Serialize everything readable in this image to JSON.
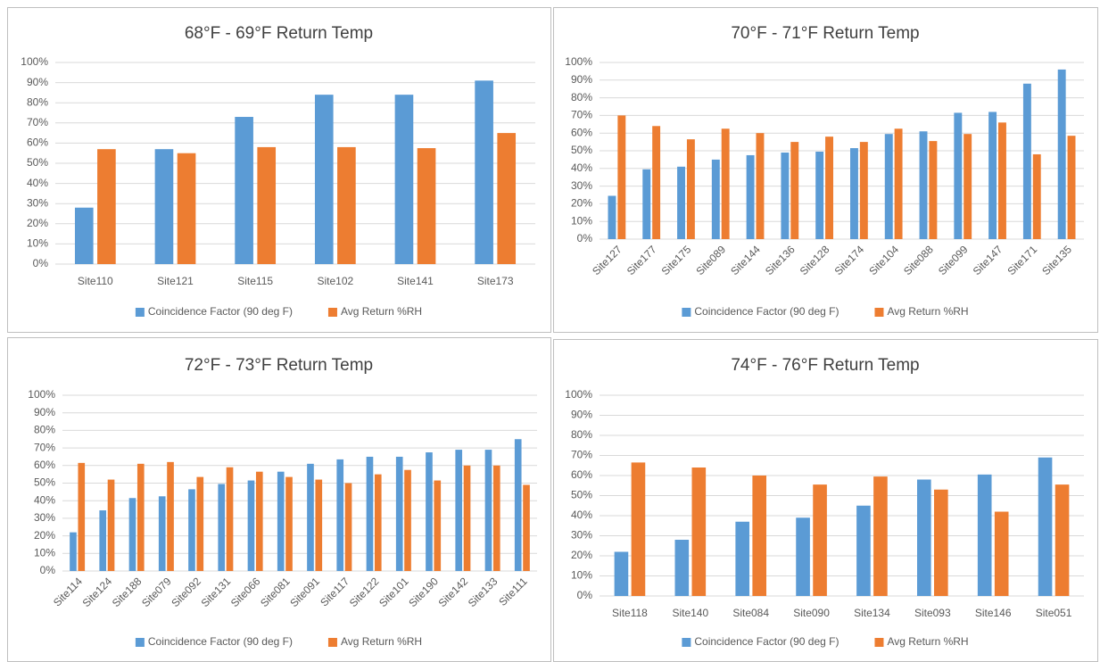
{
  "chart_data": [
    {
      "type": "bar",
      "title": "68°F - 69°F Return Temp",
      "categories": [
        "Site110",
        "Site121",
        "Site115",
        "Site102",
        "Site141",
        "Site173"
      ],
      "series": [
        {
          "name": "Coincidence Factor (90 deg F)",
          "color": "#5b9bd5",
          "values": [
            28,
            57,
            73,
            84,
            84,
            91
          ]
        },
        {
          "name": "Avg Return %RH",
          "color": "#ed7d31",
          "values": [
            57,
            55,
            58,
            58,
            57.5,
            65
          ]
        }
      ],
      "ylim": [
        0,
        100
      ],
      "yticks": [
        {
          "value": 0,
          "label": "0%"
        },
        {
          "value": 10,
          "label": "10%"
        },
        {
          "value": 20,
          "label": "20%"
        },
        {
          "value": 30,
          "label": "30%"
        },
        {
          "value": 40,
          "label": "40%"
        },
        {
          "value": 50,
          "label": "50%"
        },
        {
          "value": 60,
          "label": "60%"
        },
        {
          "value": 70,
          "label": "70%"
        },
        {
          "value": 80,
          "label": "80%"
        },
        {
          "value": 90,
          "label": "90%"
        },
        {
          "value": 100,
          "label": "100%"
        }
      ],
      "grid": true,
      "legend": "bottom"
    },
    {
      "type": "bar",
      "title": "70°F - 71°F Return Temp",
      "categories": [
        "Site127",
        "Site177",
        "Site175",
        "Site089",
        "Site144",
        "Site136",
        "Site128",
        "Site174",
        "Site104",
        "Site088",
        "Site099",
        "Site147",
        "Site171",
        "Site135"
      ],
      "series": [
        {
          "name": "Coincidence Factor (90 deg F)",
          "color": "#5b9bd5",
          "values": [
            24.5,
            39.5,
            41,
            45,
            47.5,
            49,
            49.5,
            51.5,
            59.5,
            61,
            71.5,
            72,
            88,
            96
          ]
        },
        {
          "name": "Avg Return %RH",
          "color": "#ed7d31",
          "values": [
            70,
            64,
            56.5,
            62.5,
            60,
            55,
            58,
            55,
            62.5,
            55.5,
            59.5,
            66,
            48,
            58.5
          ]
        }
      ],
      "ylim": [
        0,
        100
      ],
      "yticks": [
        {
          "value": 0,
          "label": "0%"
        },
        {
          "value": 10,
          "label": "10%"
        },
        {
          "value": 20,
          "label": "20%"
        },
        {
          "value": 30,
          "label": "30%"
        },
        {
          "value": 40,
          "label": "40%"
        },
        {
          "value": 50,
          "label": "50%"
        },
        {
          "value": 60,
          "label": "60%"
        },
        {
          "value": 70,
          "label": "70%"
        },
        {
          "value": 80,
          "label": "80%"
        },
        {
          "value": 90,
          "label": "90%"
        },
        {
          "value": 100,
          "label": "100%"
        }
      ],
      "grid": true,
      "legend": "bottom"
    },
    {
      "type": "bar",
      "title": "72°F - 73°F Return Temp",
      "categories": [
        "Site114",
        "Site124",
        "Site188",
        "Site079",
        "Site092",
        "Site131",
        "Site066",
        "Site081",
        "Site091",
        "Site117",
        "Site122",
        "Site101",
        "Site190",
        "Site142",
        "Site133",
        "Site111"
      ],
      "series": [
        {
          "name": "Coincidence Factor (90 deg F)",
          "color": "#5b9bd5",
          "values": [
            22,
            34.5,
            41.5,
            42.5,
            46.5,
            49.5,
            51.5,
            56.5,
            61,
            63.5,
            65,
            65,
            67.5,
            69,
            69,
            75
          ]
        },
        {
          "name": "Avg Return %RH",
          "color": "#ed7d31",
          "values": [
            61.5,
            52,
            61,
            62,
            53.5,
            59,
            56.5,
            53.5,
            52,
            50,
            55,
            57.5,
            51.5,
            60,
            60,
            49
          ]
        }
      ],
      "ylim": [
        0,
        100
      ],
      "yticks": [
        {
          "value": 0,
          "label": "0%"
        },
        {
          "value": 10,
          "label": "10%"
        },
        {
          "value": 20,
          "label": "20%"
        },
        {
          "value": 30,
          "label": "30%"
        },
        {
          "value": 40,
          "label": "40%"
        },
        {
          "value": 50,
          "label": "50%"
        },
        {
          "value": 60,
          "label": "60%"
        },
        {
          "value": 70,
          "label": "70%"
        },
        {
          "value": 80,
          "label": "80%"
        },
        {
          "value": 90,
          "label": "90%"
        },
        {
          "value": 100,
          "label": "100%"
        }
      ],
      "grid": true,
      "legend": "bottom"
    },
    {
      "type": "bar",
      "title": "74°F - 76°F Return Temp",
      "categories": [
        "Site118",
        "Site140",
        "Site084",
        "Site090",
        "Site134",
        "Site093",
        "Site146",
        "Site051"
      ],
      "series": [
        {
          "name": "Coincidence Factor (90 deg F)",
          "color": "#5b9bd5",
          "values": [
            22,
            28,
            37,
            39,
            45,
            58,
            60.5,
            69
          ]
        },
        {
          "name": "Avg Return %RH",
          "color": "#ed7d31",
          "values": [
            66.5,
            64,
            60,
            55.5,
            59.5,
            53,
            42,
            55.5
          ]
        }
      ],
      "ylim": [
        0,
        100
      ],
      "yticks": [
        {
          "value": 0,
          "label": "0%"
        },
        {
          "value": 10,
          "label": "10%"
        },
        {
          "value": 20,
          "label": "20%"
        },
        {
          "value": 30,
          "label": "30%"
        },
        {
          "value": 40,
          "label": "40%"
        },
        {
          "value": 50,
          "label": "50%"
        },
        {
          "value": 60,
          "label": "60%"
        },
        {
          "value": 70,
          "label": "70%"
        },
        {
          "value": 80,
          "label": "80%"
        },
        {
          "value": 90,
          "label": "90%"
        },
        {
          "value": 100,
          "label": "100%"
        }
      ],
      "grid": true,
      "legend": "bottom"
    }
  ]
}
